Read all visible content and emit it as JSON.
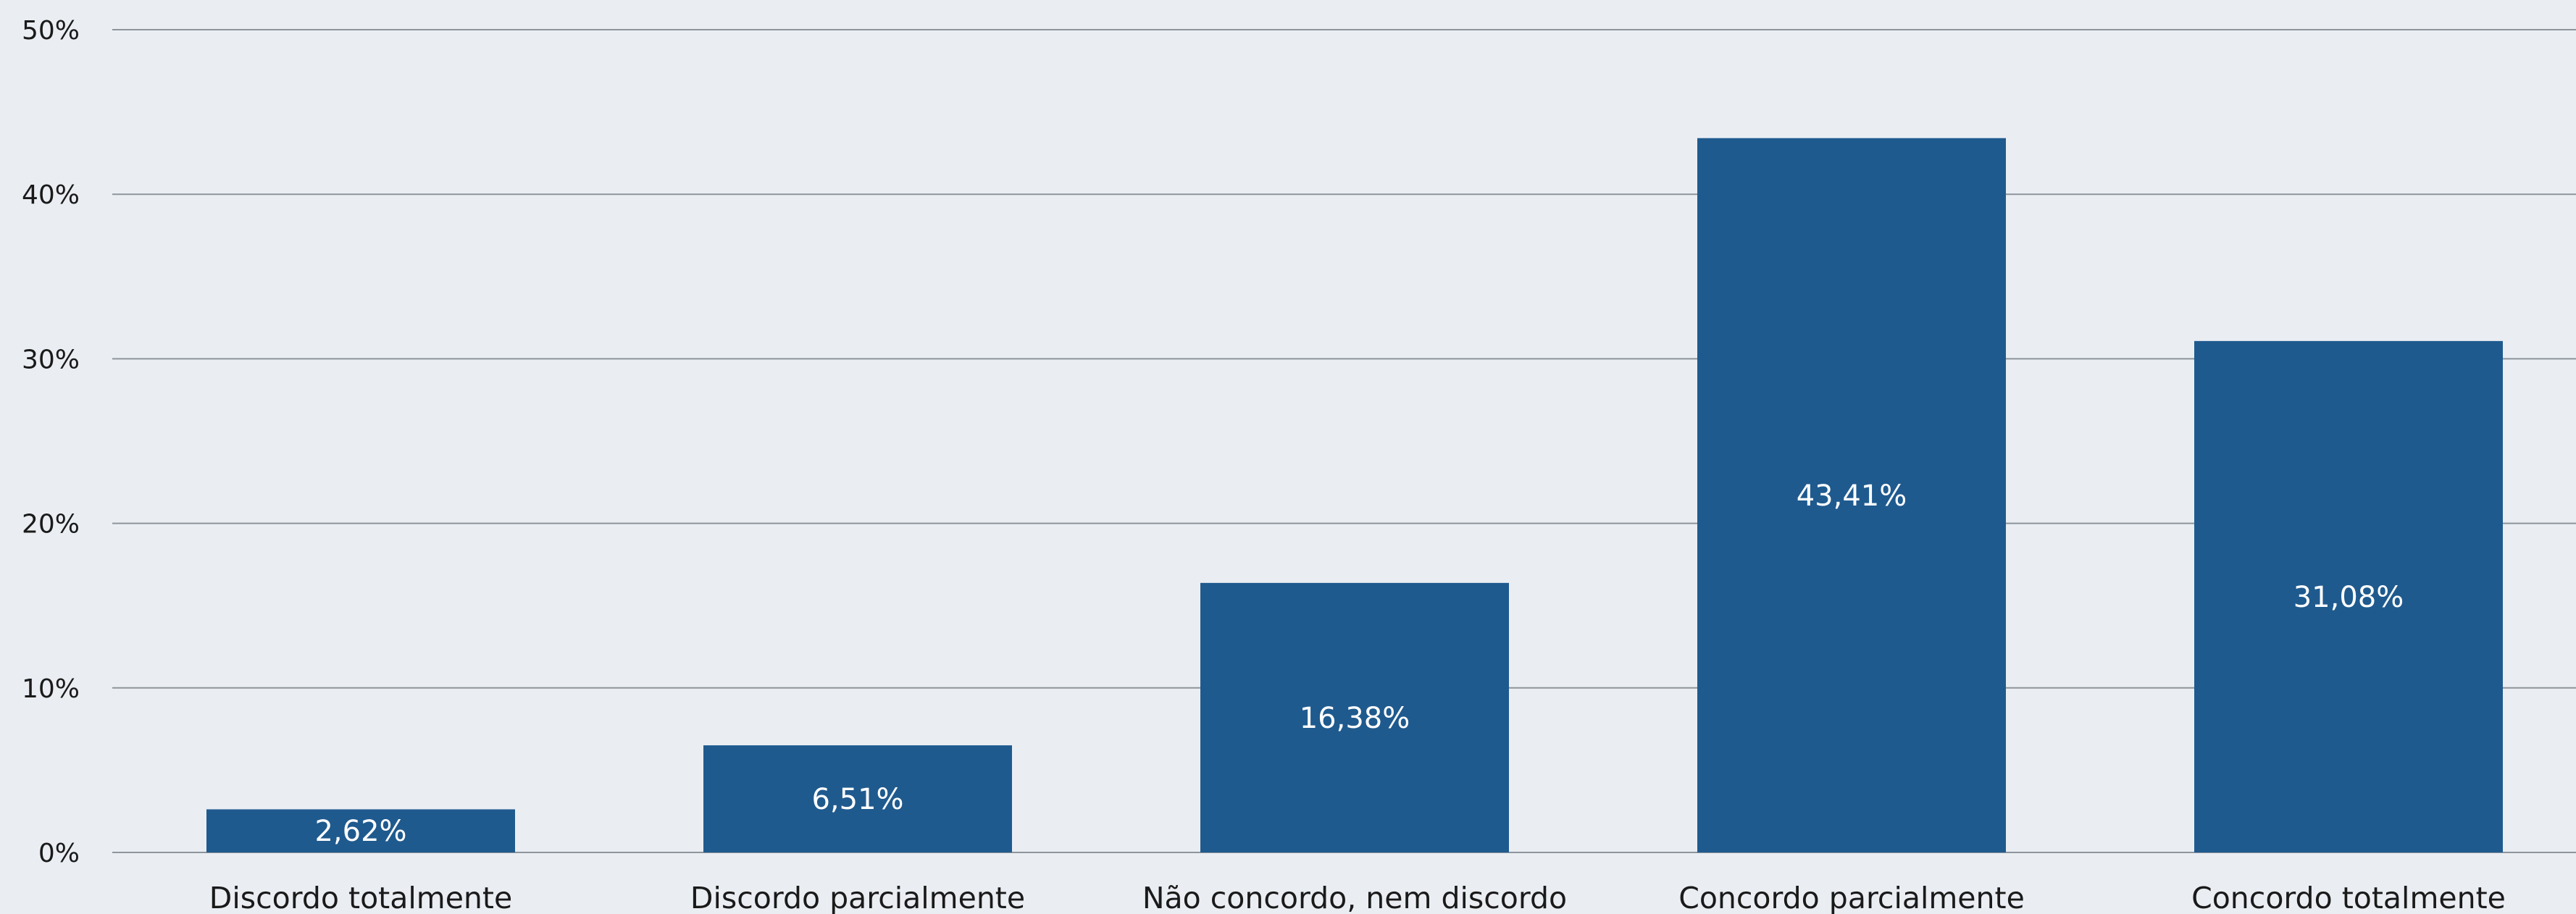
{
  "chart_data": {
    "type": "bar",
    "categories": [
      "Discordo totalmente",
      "Discordo parcialmente",
      "Não concordo, nem discordo",
      "Concordo parcialmente",
      "Concordo totalmente"
    ],
    "values": [
      2.62,
      6.51,
      16.38,
      43.41,
      31.08
    ],
    "data_labels": [
      "2,62%",
      "6,51%",
      "16,38%",
      "43,41%",
      "31,08%"
    ],
    "y_ticks": [
      0,
      10,
      20,
      30,
      40,
      50
    ],
    "y_tick_labels": [
      "0%",
      "10%",
      "20%",
      "30%",
      "40%",
      "50%"
    ],
    "ylim": [
      0,
      50
    ],
    "grid": true,
    "legend": "none",
    "bar_color": "#1f5a8e",
    "background_color": "#eaeef3"
  }
}
